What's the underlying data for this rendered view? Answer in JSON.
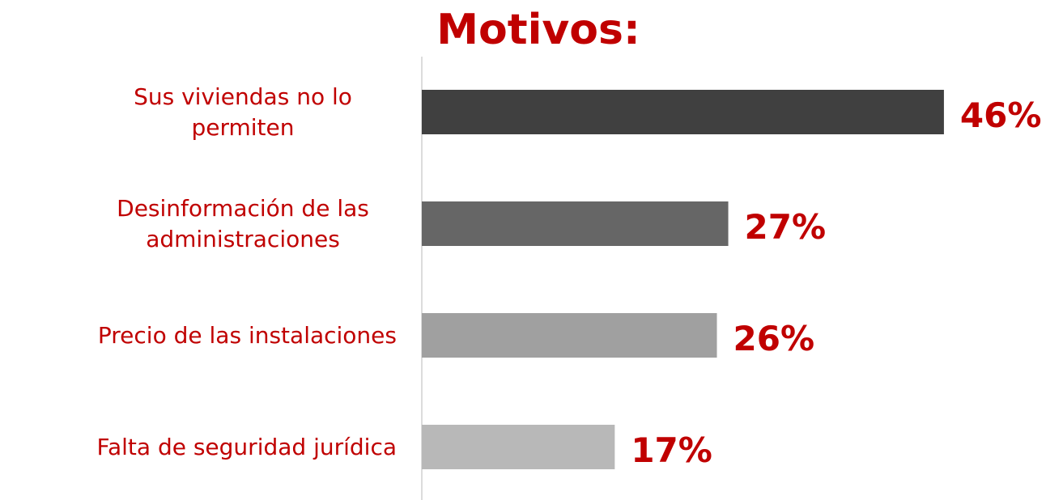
{
  "chart_data": {
    "type": "hbar",
    "title": "Motivos:",
    "categories": [
      "Sus viviendas no lo permiten",
      "Desinformación de las administraciones",
      "Precio de las instalaciones",
      "Falta de seguridad jurídica"
    ],
    "values": [
      46,
      27,
      26,
      17
    ],
    "value_labels": [
      "46%",
      "27%",
      "26%",
      "17%"
    ],
    "colors": [
      "#404040",
      "#666666",
      "#a0a0a0",
      "#b8b8b8"
    ],
    "xlim": [
      0,
      50
    ]
  }
}
